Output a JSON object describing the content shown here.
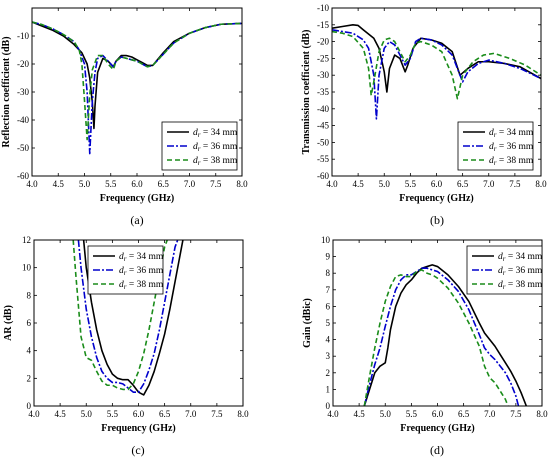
{
  "panels": [
    {
      "id": "a",
      "caption": "(a)",
      "chart_data": {
        "type": "line",
        "xlabel": "Frequency (GHz)",
        "ylabel": "Reflection coefficient (dB)",
        "xlim": [
          4.0,
          8.0
        ],
        "ylim": [
          -60,
          0
        ],
        "xticks": [
          4.0,
          4.5,
          5.0,
          5.5,
          6.0,
          6.5,
          7.0,
          7.5,
          8.0
        ],
        "yticks": [
          -60,
          -50,
          -40,
          -30,
          -20,
          -10
        ],
        "ytick_labels": [
          "-60",
          "-50",
          "-40",
          "-30",
          "-20",
          "-10"
        ],
        "legend_position": "lower-right",
        "series": [
          {
            "name": "d_r = 34 mm",
            "sub": "r",
            "label": "= 34 mm",
            "color": "#000000",
            "dash": "",
            "x": [
              4.0,
              4.2,
              4.4,
              4.6,
              4.8,
              4.95,
              5.05,
              5.1,
              5.15,
              5.18,
              5.2,
              5.25,
              5.35,
              5.45,
              5.55,
              5.6,
              5.7,
              5.8,
              5.9,
              6.0,
              6.1,
              6.2,
              6.3,
              6.5,
              6.7,
              7.0,
              7.3,
              7.6,
              8.0
            ],
            "y": [
              -5.0,
              -6.5,
              -8.0,
              -10.0,
              -13.0,
              -16.0,
              -20.0,
              -25.0,
              -34.0,
              -43.0,
              -35.0,
              -23.0,
              -18.0,
              -19.0,
              -21.0,
              -19.0,
              -17.0,
              -17.0,
              -17.5,
              -18.5,
              -19.5,
              -20.5,
              -20.5,
              -16.0,
              -12.0,
              -9.0,
              -7.0,
              -5.8,
              -5.5
            ]
          },
          {
            "name": "d_r = 36 mm",
            "sub": "r",
            "label": "= 36 mm",
            "color": "#0000cc",
            "dash": "7,2,2,2",
            "x": [
              4.0,
              4.2,
              4.4,
              4.6,
              4.8,
              4.9,
              5.0,
              5.05,
              5.1,
              5.15,
              5.2,
              5.25,
              5.35,
              5.45,
              5.55,
              5.6,
              5.7,
              5.8,
              5.9,
              6.0,
              6.1,
              6.2,
              6.3,
              6.5,
              6.7,
              7.0,
              7.3,
              7.6,
              8.0
            ],
            "y": [
              -5.0,
              -6.0,
              -7.5,
              -9.5,
              -12.0,
              -15.0,
              -20.0,
              -30.0,
              -52.0,
              -33.0,
              -23.0,
              -18.0,
              -17.0,
              -19.0,
              -21.0,
              -19.0,
              -17.5,
              -18.0,
              -18.5,
              -19.0,
              -20.0,
              -21.0,
              -20.5,
              -16.5,
              -12.5,
              -9.0,
              -7.0,
              -5.8,
              -5.5
            ]
          },
          {
            "name": "d_r = 38 mm",
            "sub": "r",
            "label": "= 38 mm",
            "color": "#1a8c1a",
            "dash": "5,3",
            "x": [
              4.0,
              4.2,
              4.4,
              4.6,
              4.8,
              4.9,
              4.95,
              5.0,
              5.05,
              5.1,
              5.15,
              5.25,
              5.35,
              5.45,
              5.55,
              5.6,
              5.7,
              5.8,
              5.9,
              6.0,
              6.1,
              6.2,
              6.3,
              6.5,
              6.7,
              7.0,
              7.3,
              7.6,
              8.0
            ],
            "y": [
              -5.0,
              -6.0,
              -7.5,
              -9.5,
              -12.0,
              -15.0,
              -20.0,
              -33.0,
              -47.0,
              -31.0,
              -22.0,
              -17.0,
              -17.0,
              -20.0,
              -22.0,
              -19.0,
              -17.5,
              -18.0,
              -18.5,
              -19.0,
              -20.0,
              -21.0,
              -20.5,
              -16.5,
              -12.5,
              -9.0,
              -7.0,
              -5.8,
              -5.5
            ]
          }
        ]
      }
    },
    {
      "id": "b",
      "caption": "(b)",
      "chart_data": {
        "type": "line",
        "xlabel": "Frequency (GHz)",
        "ylabel": "Transmission coefficient (dB)",
        "xlim": [
          4.0,
          8.0
        ],
        "ylim": [
          -60,
          -10
        ],
        "xticks": [
          4.0,
          4.5,
          5.0,
          5.5,
          6.0,
          6.5,
          7.0,
          7.5,
          8.0
        ],
        "yticks": [
          -60,
          -55,
          -50,
          -45,
          -40,
          -35,
          -30,
          -25,
          -20,
          -15,
          -10
        ],
        "ytick_labels": [
          "-60",
          "-55",
          "-50",
          "-45",
          "-40",
          "-35",
          "-30",
          "-25",
          "-20",
          "-15",
          "-10"
        ],
        "legend_position": "lower-right",
        "series": [
          {
            "name": "d_r = 34 mm",
            "sub": "r",
            "label": "= 34 mm",
            "color": "#000000",
            "dash": "",
            "x": [
              4.0,
              4.2,
              4.4,
              4.5,
              4.6,
              4.8,
              4.9,
              5.0,
              5.05,
              5.1,
              5.2,
              5.3,
              5.4,
              5.45,
              5.55,
              5.7,
              5.9,
              6.1,
              6.3,
              6.45,
              6.6,
              6.8,
              7.0,
              7.3,
              7.6,
              8.0
            ],
            "y": [
              -16.0,
              -15.5,
              -15.0,
              -15.2,
              -16.5,
              -19.0,
              -22.0,
              -29.0,
              -35.0,
              -28.0,
              -24.0,
              -25.0,
              -29.0,
              -27.0,
              -22.0,
              -19.0,
              -19.5,
              -20.5,
              -23.0,
              -30.0,
              -28.0,
              -26.0,
              -26.0,
              -26.5,
              -27.5,
              -31.0
            ]
          },
          {
            "name": "d_r = 36 mm",
            "sub": "r",
            "label": "= 36 mm",
            "color": "#0000cc",
            "dash": "7,2,2,2",
            "x": [
              4.0,
              4.2,
              4.4,
              4.6,
              4.7,
              4.8,
              4.85,
              4.9,
              5.0,
              5.1,
              5.2,
              5.3,
              5.4,
              5.5,
              5.6,
              5.7,
              5.9,
              6.1,
              6.3,
              6.5,
              6.6,
              6.8,
              7.0,
              7.3,
              7.6,
              8.0
            ],
            "y": [
              -16.5,
              -17.0,
              -17.5,
              -19.5,
              -22.0,
              -30.0,
              -43.0,
              -30.0,
              -22.0,
              -20.0,
              -21.0,
              -24.0,
              -27.0,
              -25.0,
              -20.0,
              -19.0,
              -19.5,
              -21.0,
              -24.0,
              -32.0,
              -29.0,
              -26.5,
              -25.5,
              -26.5,
              -28.0,
              -31.0
            ]
          },
          {
            "name": "d_r = 38 mm",
            "sub": "r",
            "label": "= 38 mm",
            "color": "#1a8c1a",
            "dash": "5,3",
            "x": [
              4.0,
              4.2,
              4.4,
              4.6,
              4.7,
              4.75,
              4.8,
              4.9,
              5.0,
              5.1,
              5.2,
              5.3,
              5.4,
              5.5,
              5.6,
              5.7,
              5.9,
              6.1,
              6.3,
              6.4,
              6.5,
              6.7,
              6.9,
              7.1,
              7.4,
              7.7,
              8.0
            ],
            "y": [
              -17.0,
              -17.5,
              -18.5,
              -22.0,
              -28.0,
              -36.0,
              -32.0,
              -23.0,
              -19.5,
              -19.0,
              -20.0,
              -23.0,
              -26.0,
              -24.0,
              -20.5,
              -20.0,
              -21.0,
              -23.0,
              -30.0,
              -37.0,
              -30.0,
              -26.0,
              -24.0,
              -23.5,
              -25.0,
              -27.0,
              -30.0
            ]
          }
        ]
      }
    },
    {
      "id": "c",
      "caption": "(c)",
      "chart_data": {
        "type": "line",
        "xlabel": "Frequency (GHz)",
        "ylabel": "AR (dB)",
        "xlim": [
          4.0,
          8.0
        ],
        "ylim": [
          0,
          12
        ],
        "xticks": [
          4.0,
          4.5,
          5.0,
          5.5,
          6.0,
          6.5,
          7.0,
          7.5,
          8.0
        ],
        "yticks": [
          0,
          2,
          4,
          6,
          8,
          10,
          12
        ],
        "ytick_labels": [
          "0",
          "2",
          "4",
          "6",
          "8",
          "10",
          "12"
        ],
        "legend_position": "top-center",
        "series": [
          {
            "name": "d_r = 34 mm",
            "sub": "r",
            "label": "= 34 mm",
            "color": "#000000",
            "dash": "",
            "x": [
              4.95,
              5.0,
              5.1,
              5.2,
              5.3,
              5.4,
              5.5,
              5.6,
              5.7,
              5.8,
              5.9,
              6.0,
              6.1,
              6.2,
              6.3,
              6.4,
              6.5,
              6.6,
              6.7,
              6.8,
              6.85
            ],
            "y": [
              12.0,
              10.0,
              7.5,
              5.5,
              4.0,
              3.0,
              2.3,
              2.0,
              1.9,
              1.9,
              1.5,
              1.0,
              0.8,
              1.5,
              2.5,
              3.8,
              5.2,
              7.0,
              9.0,
              11.0,
              12.0
            ]
          },
          {
            "name": "d_r = 36 mm",
            "sub": "r",
            "label": "= 36 mm",
            "color": "#0000cc",
            "dash": "7,2,2,2",
            "x": [
              4.85,
              4.9,
              5.0,
              5.1,
              5.2,
              5.3,
              5.4,
              5.5,
              5.6,
              5.7,
              5.8,
              5.9,
              6.0,
              6.1,
              6.2,
              6.3,
              6.4,
              6.5,
              6.6,
              6.7,
              6.75
            ],
            "y": [
              12.0,
              10.0,
              7.0,
              5.0,
              3.5,
              2.5,
              2.0,
              1.7,
              1.7,
              1.6,
              1.3,
              1.0,
              1.0,
              1.6,
              2.6,
              3.8,
              5.5,
              7.5,
              9.5,
              11.5,
              12.0
            ]
          },
          {
            "name": "d_r = 38 mm",
            "sub": "r",
            "label": "= 38 mm",
            "color": "#1a8c1a",
            "dash": "5,3",
            "x": [
              4.75,
              4.8,
              4.9,
              5.0,
              5.1,
              5.2,
              5.3,
              5.4,
              5.5,
              5.6,
              5.7,
              5.8,
              5.9,
              6.0,
              6.1,
              6.2,
              6.3,
              6.4,
              6.5,
              6.55
            ],
            "y": [
              12.0,
              9.5,
              5.0,
              3.5,
              3.3,
              2.5,
              1.8,
              1.5,
              1.5,
              1.3,
              1.2,
              1.2,
              1.6,
              2.5,
              3.8,
              5.5,
              7.5,
              9.5,
              11.5,
              12.0
            ]
          }
        ]
      }
    },
    {
      "id": "d",
      "caption": "(d)",
      "chart_data": {
        "type": "line",
        "xlabel": "Frequency (GHz)",
        "ylabel": "Gain (dBic)",
        "xlim": [
          4.0,
          8.0
        ],
        "ylim": [
          0,
          10
        ],
        "xticks": [
          4.0,
          4.5,
          5.0,
          5.5,
          6.0,
          6.5,
          7.0,
          7.5,
          8.0
        ],
        "yticks": [
          0,
          1,
          2,
          3,
          4,
          5,
          6,
          7,
          8,
          9,
          10
        ],
        "ytick_labels": [
          "0",
          "1",
          "2",
          "3",
          "4",
          "5",
          "6",
          "7",
          "8",
          "9",
          "10"
        ],
        "legend_position": "top-right",
        "series": [
          {
            "name": "d_r = 34 mm",
            "sub": "r",
            "label": "= 34 mm",
            "color": "#000000",
            "dash": "",
            "x": [
              4.6,
              4.7,
              4.8,
              4.9,
              5.0,
              5.05,
              5.1,
              5.2,
              5.3,
              5.4,
              5.5,
              5.6,
              5.7,
              5.8,
              5.9,
              6.0,
              6.2,
              6.4,
              6.6,
              6.8,
              6.9,
              7.0,
              7.1,
              7.2,
              7.3,
              7.4,
              7.5,
              7.6,
              7.7
            ],
            "y": [
              0.0,
              1.0,
              2.0,
              2.4,
              2.6,
              3.5,
              4.6,
              6.0,
              6.8,
              7.3,
              7.6,
              8.0,
              8.3,
              8.4,
              8.5,
              8.4,
              7.9,
              7.2,
              6.3,
              5.0,
              4.4,
              4.0,
              3.6,
              3.1,
              2.6,
              2.1,
              1.5,
              0.8,
              0.0
            ]
          },
          {
            "name": "d_r = 36 mm",
            "sub": "r",
            "label": "= 36 mm",
            "color": "#0000cc",
            "dash": "7,2,2,2",
            "x": [
              4.6,
              4.7,
              4.8,
              4.9,
              5.0,
              5.1,
              5.2,
              5.3,
              5.4,
              5.5,
              5.6,
              5.7,
              5.8,
              5.9,
              6.0,
              6.2,
              6.4,
              6.6,
              6.8,
              6.9,
              7.0,
              7.1,
              7.2,
              7.3,
              7.4,
              7.5,
              7.55
            ],
            "y": [
              0.0,
              1.3,
              2.5,
              3.5,
              4.8,
              6.0,
              7.0,
              7.6,
              7.9,
              7.9,
              8.1,
              8.3,
              8.3,
              8.2,
              8.1,
              7.6,
              6.9,
              5.8,
              4.3,
              3.5,
              3.1,
              2.8,
              2.4,
              2.0,
              1.4,
              0.6,
              0.0
            ]
          },
          {
            "name": "d_r = 38 mm",
            "sub": "r",
            "label": "= 38 mm",
            "color": "#1a8c1a",
            "dash": "5,3",
            "x": [
              4.6,
              4.7,
              4.8,
              4.9,
              5.0,
              5.1,
              5.2,
              5.3,
              5.4,
              5.5,
              5.6,
              5.7,
              5.8,
              5.9,
              6.0,
              6.2,
              6.4,
              6.6,
              6.8,
              6.9,
              7.0,
              7.1,
              7.2,
              7.3,
              7.35
            ],
            "y": [
              0.0,
              1.8,
              3.5,
              5.0,
              6.3,
              7.2,
              7.8,
              7.9,
              7.8,
              7.8,
              8.1,
              8.2,
              8.0,
              7.9,
              7.7,
              7.1,
              6.2,
              5.0,
              3.6,
              2.4,
              1.7,
              1.4,
              0.9,
              0.4,
              0.0
            ]
          }
        ]
      }
    }
  ]
}
